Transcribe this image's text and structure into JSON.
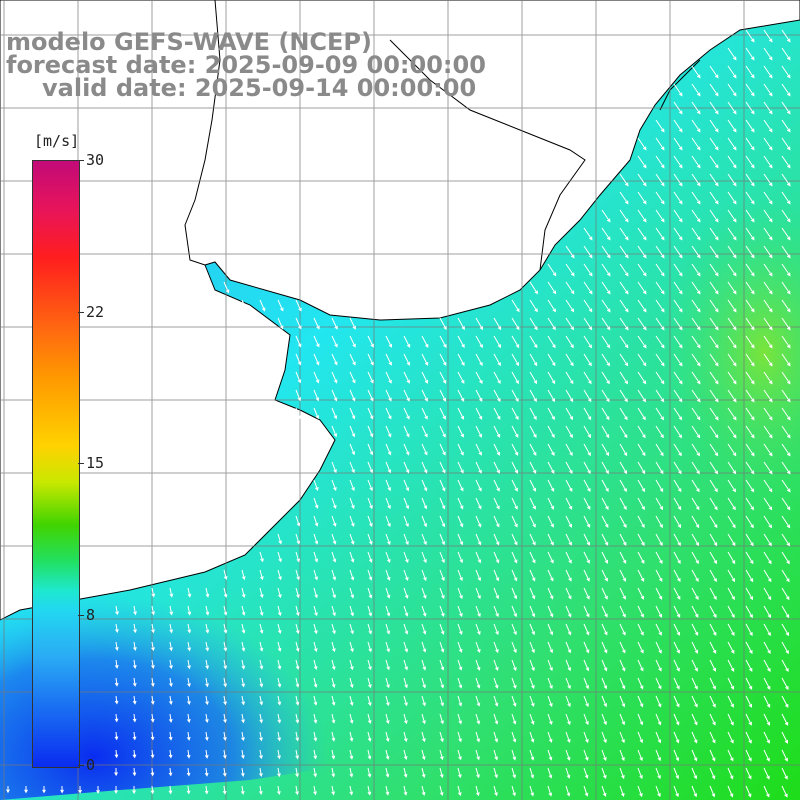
{
  "title": {
    "line1": "modelo GEFS-WAVE (NCEP)",
    "line2": "forecast date: 2025-09-09 00:00:00",
    "line3": "valid date: 2025-09-14 00:00:00"
  },
  "colorbar": {
    "unit": "[m/s]",
    "ticks": [
      "30",
      "22",
      "15",
      "8",
      "0"
    ],
    "min": 0,
    "max": 30
  },
  "map": {
    "variable": "wind speed and direction",
    "region": "South America east coast (Uruguay / southern Brazil / Argentina)",
    "grid": "graticule lines every degree",
    "colors": {
      "low": "#0a2cf0",
      "mid": "#22d8f0",
      "high": "#41d400",
      "land": "#ffffff",
      "coast": "#000000"
    }
  }
}
